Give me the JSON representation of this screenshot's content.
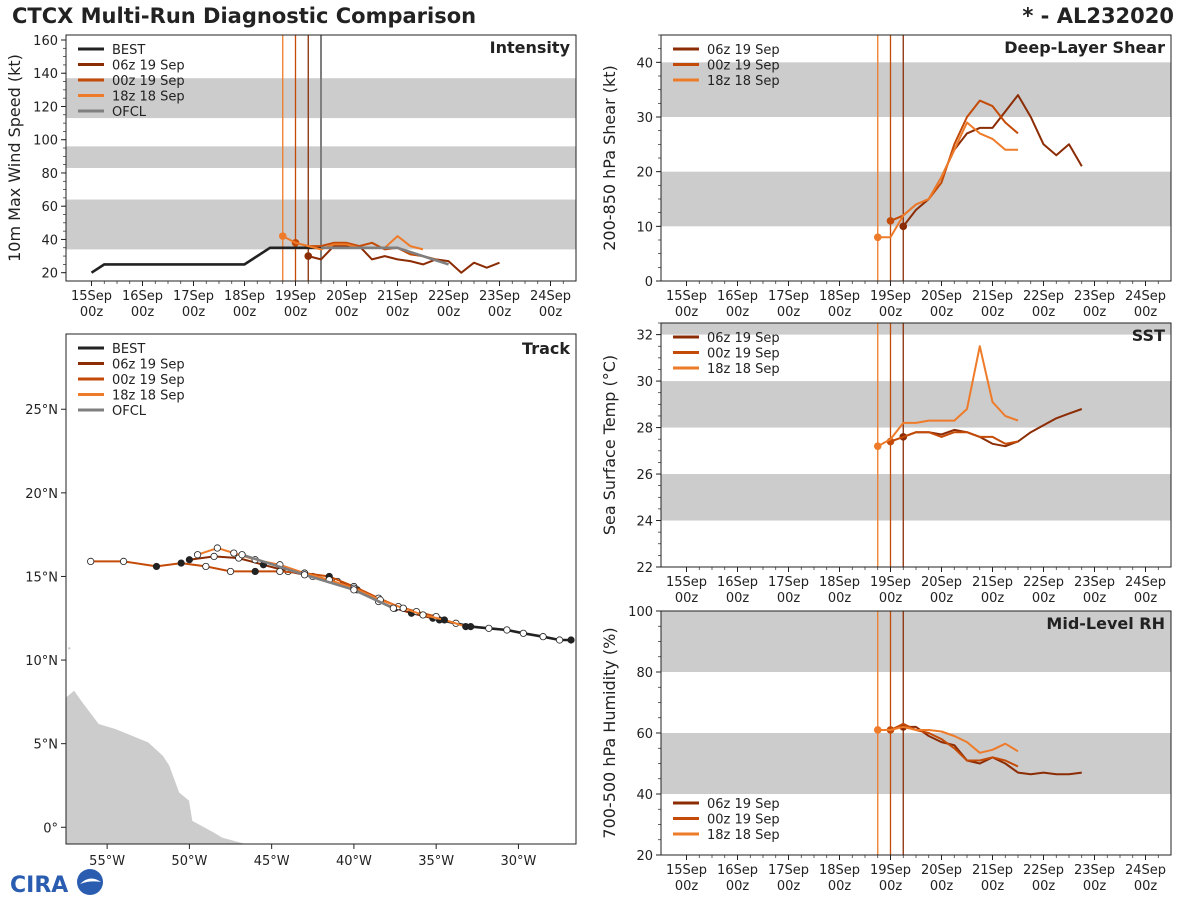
{
  "title": "CTCX Multi-Run Diagnostic Comparison",
  "storm_id": "* - AL232020",
  "logo_text": "CIRA",
  "colors": {
    "BEST": "#222222",
    "r06": "#8b2c04",
    "r00": "#c44b07",
    "r18": "#ee7b2a",
    "OFCL": "#7f7f7f",
    "band": "#cccccc",
    "land": "#cccccc"
  },
  "time_ticks": [
    "15Sep\n00z",
    "16Sep\n00z",
    "17Sep\n00z",
    "18Sep\n00z",
    "19Sep\n00z",
    "20Sep\n00z",
    "21Sep\n00z",
    "22Sep\n00z",
    "23Sep\n00z",
    "24Sep\n00z"
  ],
  "init_lines": [
    {
      "run": "r18",
      "t": -0.25
    },
    {
      "run": "r00",
      "t": 0
    },
    {
      "run": "r06",
      "t": 0.25
    }
  ],
  "chart_data": [
    {
      "id": "intensity",
      "type": "line",
      "title": "Intensity",
      "ylabel": "10m Max Wind Speed (kt)",
      "xlim": [
        -4.5,
        5.5
      ],
      "ylim": [
        15,
        163
      ],
      "yticks": [
        20,
        40,
        60,
        80,
        100,
        120,
        140,
        160
      ],
      "bands": [
        [
          34,
          64
        ],
        [
          83,
          96
        ],
        [
          113,
          137
        ]
      ],
      "legend": [
        "BEST",
        "06z 19 Sep",
        "00z 19 Sep",
        "18z 18 Sep",
        "OFCL"
      ],
      "ofcl_init": 0.5,
      "series": [
        {
          "name": "BEST",
          "key": "BEST",
          "x": [
            -4,
            -3.75,
            -3.5,
            -1,
            -0.5,
            0,
            0.5
          ],
          "y": [
            20,
            25,
            25,
            25,
            35,
            35,
            35
          ],
          "markers": false
        },
        {
          "name": "06z 19 Sep",
          "key": "r06",
          "x": [
            0.25,
            0.5,
            0.75,
            1,
            1.25,
            1.5,
            1.75,
            2,
            2.25,
            2.5,
            2.75,
            3,
            3.25,
            3.5,
            3.75,
            4
          ],
          "y": [
            30,
            28,
            36,
            36,
            36,
            28,
            30,
            28,
            27,
            25,
            28,
            27,
            20,
            26,
            23,
            26
          ],
          "markers": true
        },
        {
          "name": "00z 19 Sep",
          "key": "r00",
          "x": [
            0,
            0.25,
            0.5,
            0.75,
            1,
            1.25,
            1.5,
            1.75,
            2,
            2.25,
            2.5,
            2.75,
            3
          ],
          "y": [
            38,
            36,
            36,
            38,
            38,
            36,
            38,
            34,
            35,
            31,
            30,
            28,
            25
          ],
          "markers": true
        },
        {
          "name": "18z 18 Sep",
          "key": "r18",
          "x": [
            -0.25,
            0,
            0.25,
            0.5,
            0.75,
            1,
            1.25,
            1.5,
            1.75,
            2,
            2.25,
            2.5
          ],
          "y": [
            42,
            38,
            36,
            34,
            37,
            37,
            35,
            35,
            35,
            42,
            36,
            34
          ],
          "markers": true
        },
        {
          "name": "OFCL",
          "key": "OFCL",
          "x": [
            0.5,
            1,
            1.5,
            2,
            2.5,
            3
          ],
          "y": [
            35,
            35,
            35,
            35,
            30,
            25
          ],
          "markers": false
        }
      ]
    },
    {
      "id": "shear",
      "type": "line",
      "title": "Deep-Layer Shear",
      "ylabel": "200-850 hPa Shear (kt)",
      "xlim": [
        -4.5,
        5.5
      ],
      "ylim": [
        0,
        45
      ],
      "yticks": [
        0,
        10,
        20,
        30,
        40
      ],
      "bands": [
        [
          10,
          20
        ],
        [
          30,
          40
        ]
      ],
      "legend": [
        "06z 19 Sep",
        "00z 19 Sep",
        "18z 18 Sep"
      ],
      "series": [
        {
          "name": "06z 19 Sep",
          "key": "r06",
          "x": [
            0.25,
            0.5,
            0.75,
            1,
            1.25,
            1.5,
            1.75,
            2,
            2.25,
            2.5,
            2.75,
            3,
            3.25,
            3.5,
            3.75
          ],
          "y": [
            10,
            13,
            15,
            19,
            24,
            27,
            28,
            28,
            31,
            34,
            30,
            25,
            23,
            25,
            21
          ],
          "markers": true
        },
        {
          "name": "00z 19 Sep",
          "key": "r00",
          "x": [
            0,
            0.25,
            0.5,
            0.75,
            1,
            1.25,
            1.5,
            1.75,
            2,
            2.25,
            2.5
          ],
          "y": [
            11,
            12,
            14,
            15,
            18,
            25,
            30,
            33,
            32,
            29,
            27
          ],
          "markers": true
        },
        {
          "name": "18z 18 Sep",
          "key": "r18",
          "x": [
            -0.25,
            0,
            0.25,
            0.5,
            0.75,
            1,
            1.25,
            1.5,
            1.75,
            2,
            2.25,
            2.5
          ],
          "y": [
            8,
            8,
            12,
            14,
            15,
            19,
            24,
            29,
            27,
            26,
            24,
            24
          ],
          "markers": true
        }
      ]
    },
    {
      "id": "sst",
      "type": "line",
      "title": "SST",
      "ylabel": "Sea Surface Temp (°C)",
      "xlim": [
        -4.5,
        5.5
      ],
      "ylim": [
        22,
        32.5
      ],
      "yticks": [
        22,
        24,
        26,
        28,
        30,
        32
      ],
      "bands": [
        [
          24,
          26
        ],
        [
          28,
          30
        ],
        [
          32,
          34
        ]
      ],
      "legend": [
        "06z 19 Sep",
        "00z 19 Sep",
        "18z 18 Sep"
      ],
      "series": [
        {
          "name": "06z 19 Sep",
          "key": "r06",
          "x": [
            0.25,
            0.5,
            0.75,
            1,
            1.25,
            1.5,
            1.75,
            2,
            2.25,
            2.5,
            2.75,
            3,
            3.25,
            3.5,
            3.75
          ],
          "y": [
            27.6,
            27.8,
            27.8,
            27.7,
            27.9,
            27.8,
            27.6,
            27.3,
            27.2,
            27.4,
            27.8,
            28.1,
            28.4,
            28.6,
            28.8
          ],
          "markers": true
        },
        {
          "name": "00z 19 Sep",
          "key": "r00",
          "x": [
            0,
            0.25,
            0.5,
            0.75,
            1,
            1.25,
            1.5,
            1.75,
            2,
            2.25,
            2.5
          ],
          "y": [
            27.4,
            27.6,
            27.8,
            27.8,
            27.6,
            27.8,
            27.8,
            27.6,
            27.6,
            27.3,
            27.4
          ],
          "markers": true
        },
        {
          "name": "18z 18 Sep",
          "key": "r18",
          "x": [
            -0.25,
            0,
            0.25,
            0.5,
            0.75,
            1,
            1.25,
            1.5,
            1.75,
            2,
            2.25,
            2.5
          ],
          "y": [
            27.2,
            27.5,
            28.2,
            28.2,
            28.3,
            28.3,
            28.3,
            28.8,
            31.5,
            29.1,
            28.5,
            28.3
          ],
          "markers": true
        }
      ]
    },
    {
      "id": "rh",
      "type": "line",
      "title": "Mid-Level RH",
      "ylabel": "700-500 hPa Humidity (%)",
      "xlim": [
        -4.5,
        5.5
      ],
      "ylim": [
        20,
        100
      ],
      "yticks": [
        20,
        40,
        60,
        80,
        100
      ],
      "bands": [
        [
          40,
          60
        ],
        [
          80,
          100
        ]
      ],
      "legend": [
        "06z 19 Sep",
        "00z 19 Sep",
        "18z 18 Sep"
      ],
      "legend_pos": "bottom-left",
      "series": [
        {
          "name": "06z 19 Sep",
          "key": "r06",
          "x": [
            0.25,
            0.5,
            0.75,
            1,
            1.25,
            1.5,
            1.75,
            2,
            2.25,
            2.5,
            2.75,
            3,
            3.25,
            3.5,
            3.75
          ],
          "y": [
            62,
            62,
            59,
            57,
            56,
            51,
            50,
            52,
            50,
            47,
            46.5,
            47,
            46.5,
            46.5,
            47
          ],
          "markers": true
        },
        {
          "name": "00z 19 Sep",
          "key": "r00",
          "x": [
            0,
            0.25,
            0.5,
            0.75,
            1,
            1.25,
            1.5,
            1.75,
            2,
            2.25,
            2.5
          ],
          "y": [
            61,
            63,
            61,
            60,
            58,
            55,
            51,
            51,
            52,
            51,
            49
          ],
          "markers": true
        },
        {
          "name": "18z 18 Sep",
          "key": "r18",
          "x": [
            -0.25,
            0,
            0.25,
            0.5,
            0.75,
            1,
            1.25,
            1.5,
            1.75,
            2,
            2.25,
            2.5
          ],
          "y": [
            61,
            61,
            62,
            61,
            61,
            60.5,
            59,
            57,
            53.5,
            54.5,
            56.5,
            54
          ],
          "markers": true
        }
      ]
    },
    {
      "id": "track",
      "type": "scatter",
      "title": "Track",
      "xlim": [
        -57.5,
        -26.5
      ],
      "ylim": [
        -1,
        29.5
      ],
      "xticks": [
        {
          "v": -55,
          "label": "55°W"
        },
        {
          "v": -50,
          "label": "50°W"
        },
        {
          "v": -45,
          "label": "45°W"
        },
        {
          "v": -40,
          "label": "40°W"
        },
        {
          "v": -35,
          "label": "35°W"
        },
        {
          "v": -30,
          "label": "30°W"
        }
      ],
      "yticks": [
        {
          "v": 0,
          "label": "0°"
        },
        {
          "v": 5,
          "label": "5°N"
        },
        {
          "v": 10,
          "label": "10°N"
        },
        {
          "v": 15,
          "label": "15°N"
        },
        {
          "v": 20,
          "label": "20°N"
        },
        {
          "v": 25,
          "label": "25°N"
        }
      ],
      "legend": [
        "BEST",
        "06z 19 Sep",
        "00z 19 Sep",
        "18z 18 Sep",
        "OFCL"
      ],
      "series": [
        {
          "name": "BEST",
          "key": "BEST",
          "lon": [
            -26.8,
            -27.5,
            -28.5,
            -29.7,
            -30.7,
            -31.8,
            -32.9,
            -33.8,
            -34.8
          ],
          "lat": [
            11.2,
            11.2,
            11.4,
            11.6,
            11.8,
            11.9,
            12.0,
            12.2,
            12.4
          ],
          "filled": [
            true,
            false,
            false,
            false,
            false,
            false,
            true,
            false,
            true
          ]
        },
        {
          "name": "06z 19 Sep",
          "key": "r06",
          "lon": [
            -35.2,
            -36.5,
            -37.5,
            -38.5,
            -39.8,
            -41,
            -42.5,
            -44,
            -45.5,
            -47,
            -48.5,
            -50
          ],
          "lat": [
            12.5,
            12.8,
            13.1,
            13.5,
            14.2,
            14.7,
            15.0,
            15.3,
            15.7,
            16.1,
            16.2,
            16.0
          ],
          "filled": [
            true,
            true,
            true,
            false,
            true,
            false,
            false,
            false,
            true,
            false,
            false,
            true
          ]
        },
        {
          "name": "00z 19 Sep",
          "key": "r00",
          "lon": [
            -35,
            -36.2,
            -37.3,
            -38.5,
            -40,
            -41.5,
            -43,
            -44.5,
            -46,
            -47.5,
            -49,
            -50.5,
            -52,
            -54,
            -56
          ],
          "lat": [
            12.6,
            12.9,
            13.2,
            13.7,
            14.4,
            15.0,
            15.2,
            15.3,
            15.3,
            15.3,
            15.6,
            15.8,
            15.6,
            15.9,
            15.9
          ],
          "filled": [
            false,
            false,
            false,
            false,
            false,
            true,
            false,
            false,
            true,
            false,
            false,
            true,
            true,
            false,
            false
          ]
        },
        {
          "name": "18z 18 Sep",
          "key": "r18",
          "lon": [
            -33.2,
            -34.5,
            -35.8,
            -37,
            -38.4,
            -40,
            -41.5,
            -43,
            -44.5,
            -46,
            -47.3,
            -48.3,
            -49.5
          ],
          "lat": [
            12.0,
            12.4,
            12.7,
            13.1,
            13.6,
            14.3,
            14.8,
            15.2,
            15.7,
            16.0,
            16.4,
            16.7,
            16.3
          ],
          "filled": [
            true,
            true,
            false,
            false,
            false,
            false,
            false,
            false,
            false,
            false,
            false,
            false,
            false
          ]
        },
        {
          "name": "OFCL",
          "key": "OFCL",
          "lon": [
            -37.6,
            -40,
            -43,
            -46.8
          ],
          "lat": [
            13.1,
            14.2,
            15.1,
            16.3
          ],
          "filled": [
            false,
            false,
            false,
            false
          ]
        }
      ]
    }
  ]
}
